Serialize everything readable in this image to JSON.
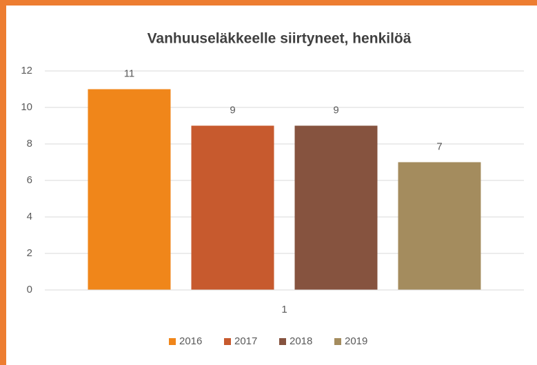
{
  "chart_data": {
    "type": "bar",
    "title": "Vanhuuseläkkeelle siirtyneet, henkilöä",
    "categories": [
      "1"
    ],
    "series": [
      {
        "name": "2016",
        "color": "#f0861a",
        "values": [
          11
        ]
      },
      {
        "name": "2017",
        "color": "#c75a2e",
        "values": [
          9
        ]
      },
      {
        "name": "2018",
        "color": "#86533f",
        "values": [
          9
        ]
      },
      {
        "name": "2019",
        "color": "#a48c5e",
        "values": [
          7
        ]
      }
    ],
    "ylim": [
      0,
      12
    ],
    "yticks": [
      0,
      2,
      4,
      6,
      8,
      10,
      12
    ],
    "grid": true,
    "legend": "bottom"
  }
}
